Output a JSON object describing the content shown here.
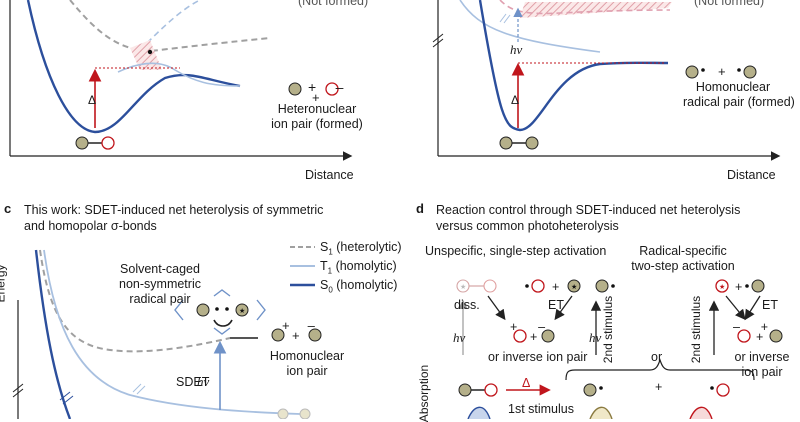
{
  "panel_a": {
    "label_not_formed": "(Not formed)",
    "label_heteronuclear_line1": "Heteronuclear",
    "label_heteronuclear_line2": "ion pair (formed)",
    "x_axis": "Distance",
    "delta": "Δ"
  },
  "panel_b": {
    "label_not_formed": "(Not formed)",
    "label_homonuclear_line1": "Homonuclear",
    "label_homonuclear_line2": "radical pair (formed)",
    "x_axis": "Distance",
    "delta": "Δ",
    "hv": "hν"
  },
  "panel_c": {
    "letter": "c",
    "title_line1": "This work: SDET-induced net heterolysis of symmetric",
    "title_line2": "and homopolar σ-bonds",
    "y_axis": "Energy",
    "legend": [
      {
        "state": "S",
        "sub": "1",
        "desc": " (heterolytic)",
        "color": "#a0a0a0"
      },
      {
        "state": "T",
        "sub": "1",
        "desc": " (homolytic)",
        "color": "#a8c0e0"
      },
      {
        "state": "S",
        "sub": "0",
        "desc": " (homolytic)",
        "color": "#2c4f9c"
      }
    ],
    "caged_line1": "Solvent-caged",
    "caged_line2": "non-symmetric",
    "caged_line3": "radical pair",
    "homonuclear_line1": "Homonuclear",
    "homonuclear_line2": "ion pair",
    "sdet": "SDET",
    "hv": "hν"
  },
  "panel_d": {
    "letter": "d",
    "title_line1": "Reaction control through SDET-induced net heterolysis",
    "title_line2": "versus common photoheterolysis",
    "unspecific": "Unspecific, single-step activation",
    "radical_specific_line1": "Radical-specific",
    "radical_specific_line2": "two-step activation",
    "diss": "diss.",
    "et_left": "ET",
    "et_right": "ET",
    "hv_left": "hν",
    "hv_mid": "hν",
    "or_inverse_left": "or inverse ion pair",
    "or_inverse_right_line1": "or inverse",
    "or_inverse_right_line2": "ion pair",
    "second_stimulus_left": "2nd stimulus",
    "second_stimulus_right": "2nd stimulus",
    "or_mid": "or",
    "first_stimulus": "1st stimulus",
    "delta": "Δ",
    "absorption": "Absorption"
  },
  "colors": {
    "navy": "#2c4f9c",
    "light_blue": "#a8c0e0",
    "grey_dash": "#a0a0a0",
    "red": "#c0161c",
    "olive": "#b5b08a",
    "pink": "#f4c7c7"
  }
}
